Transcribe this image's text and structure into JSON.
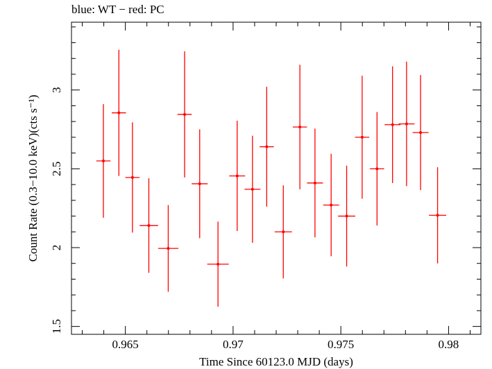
{
  "chart_data": {
    "type": "scatter",
    "title": "blue: WT − red: PC",
    "xlabel": "Time Since 60123.0 MJD (days)",
    "ylabel": "Count Rate (0.3−10.0 keV)(cts s⁻¹)",
    "xlim": [
      0.9625,
      0.9815
    ],
    "ylim": [
      1.45,
      3.43
    ],
    "xticks": [
      0.965,
      0.97,
      0.975,
      0.98
    ],
    "xtick_labels": [
      "0.965",
      "0.97",
      "0.975",
      "0.98"
    ],
    "yticks": [
      1.5,
      2,
      2.5,
      3
    ],
    "ytick_labels": [
      "1.5",
      "2",
      "2.5",
      "3"
    ],
    "grid": false,
    "series": [
      {
        "name": "PC",
        "color": "#ff0000",
        "points": [
          {
            "x": 0.96398,
            "xerr": 0.00033,
            "y": 2.55,
            "yerr": 0.36
          },
          {
            "x": 0.9647,
            "xerr": 0.00033,
            "y": 2.855,
            "yerr": 0.4
          },
          {
            "x": 0.96533,
            "xerr": 0.00033,
            "y": 2.445,
            "yerr": 0.35
          },
          {
            "x": 0.96609,
            "xerr": 0.00043,
            "y": 2.14,
            "yerr": 0.3
          },
          {
            "x": 0.96699,
            "xerr": 0.00047,
            "y": 1.995,
            "yerr": 0.275
          },
          {
            "x": 0.96775,
            "xerr": 0.00033,
            "y": 2.845,
            "yerr": 0.4
          },
          {
            "x": 0.96845,
            "xerr": 0.00037,
            "y": 2.405,
            "yerr": 0.345
          },
          {
            "x": 0.9693,
            "xerr": 0.0005,
            "y": 1.895,
            "yerr": 0.27
          },
          {
            "x": 0.97019,
            "xerr": 0.00037,
            "y": 2.455,
            "yerr": 0.35
          },
          {
            "x": 0.9709,
            "xerr": 0.00037,
            "y": 2.37,
            "yerr": 0.34
          },
          {
            "x": 0.97156,
            "xerr": 0.00033,
            "y": 2.64,
            "yerr": 0.38
          },
          {
            "x": 0.97233,
            "xerr": 0.0004,
            "y": 2.1,
            "yerr": 0.295
          },
          {
            "x": 0.9731,
            "xerr": 0.00033,
            "y": 2.765,
            "yerr": 0.395
          },
          {
            "x": 0.9738,
            "xerr": 0.00037,
            "y": 2.41,
            "yerr": 0.345
          },
          {
            "x": 0.97455,
            "xerr": 0.00037,
            "y": 2.27,
            "yerr": 0.325
          },
          {
            "x": 0.97527,
            "xerr": 0.0004,
            "y": 2.2,
            "yerr": 0.32
          },
          {
            "x": 0.97599,
            "xerr": 0.00033,
            "y": 2.7,
            "yerr": 0.39
          },
          {
            "x": 0.97668,
            "xerr": 0.00033,
            "y": 2.5,
            "yerr": 0.36
          },
          {
            "x": 0.9774,
            "xerr": 0.00037,
            "y": 2.78,
            "yerr": 0.37
          },
          {
            "x": 0.97805,
            "xerr": 0.00037,
            "y": 2.785,
            "yerr": 0.395
          },
          {
            "x": 0.9787,
            "xerr": 0.00037,
            "y": 2.73,
            "yerr": 0.365
          },
          {
            "x": 0.97949,
            "xerr": 0.0004,
            "y": 2.205,
            "yerr": 0.305
          }
        ]
      }
    ]
  }
}
